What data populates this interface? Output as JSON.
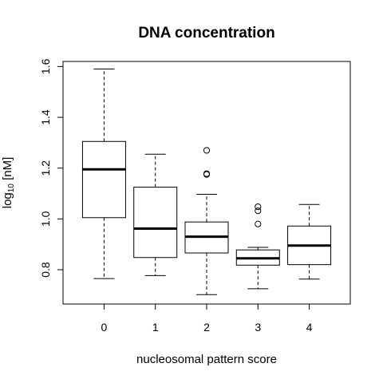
{
  "chart_data": {
    "type": "boxplot",
    "title": "DNA concentration",
    "xlabel": "nucleosomal pattern score",
    "ylabel_main": "log",
    "ylabel_sub": "10",
    "ylabel_unit": " [nM]",
    "categories": [
      "0",
      "1",
      "2",
      "3",
      "4"
    ],
    "yticks": [
      "0.8",
      "1.0",
      "1.2",
      "1.4",
      "1.6"
    ],
    "ylim": [
      0.665,
      1.62
    ],
    "grid": false,
    "boxes": [
      {
        "category": "0",
        "whisker_low": 0.765,
        "q1": 1.005,
        "median": 1.195,
        "q3": 1.305,
        "whisker_high": 1.59,
        "outliers": []
      },
      {
        "category": "1",
        "whisker_low": 0.777,
        "q1": 0.848,
        "median": 0.962,
        "q3": 1.125,
        "whisker_high": 1.255,
        "outliers": []
      },
      {
        "category": "2",
        "whisker_low": 0.702,
        "q1": 0.866,
        "median": 0.93,
        "q3": 0.988,
        "whisker_high": 1.097,
        "outliers": [
          1.175,
          1.178,
          1.27
        ]
      },
      {
        "category": "3",
        "whisker_low": 0.725,
        "q1": 0.818,
        "median": 0.845,
        "q3": 0.878,
        "whisker_high": 0.888,
        "outliers": [
          0.98,
          1.032,
          1.048
        ]
      },
      {
        "category": "4",
        "whisker_low": 0.763,
        "q1": 0.82,
        "median": 0.895,
        "q3": 0.972,
        "whisker_high": 1.057,
        "outliers": []
      }
    ]
  }
}
